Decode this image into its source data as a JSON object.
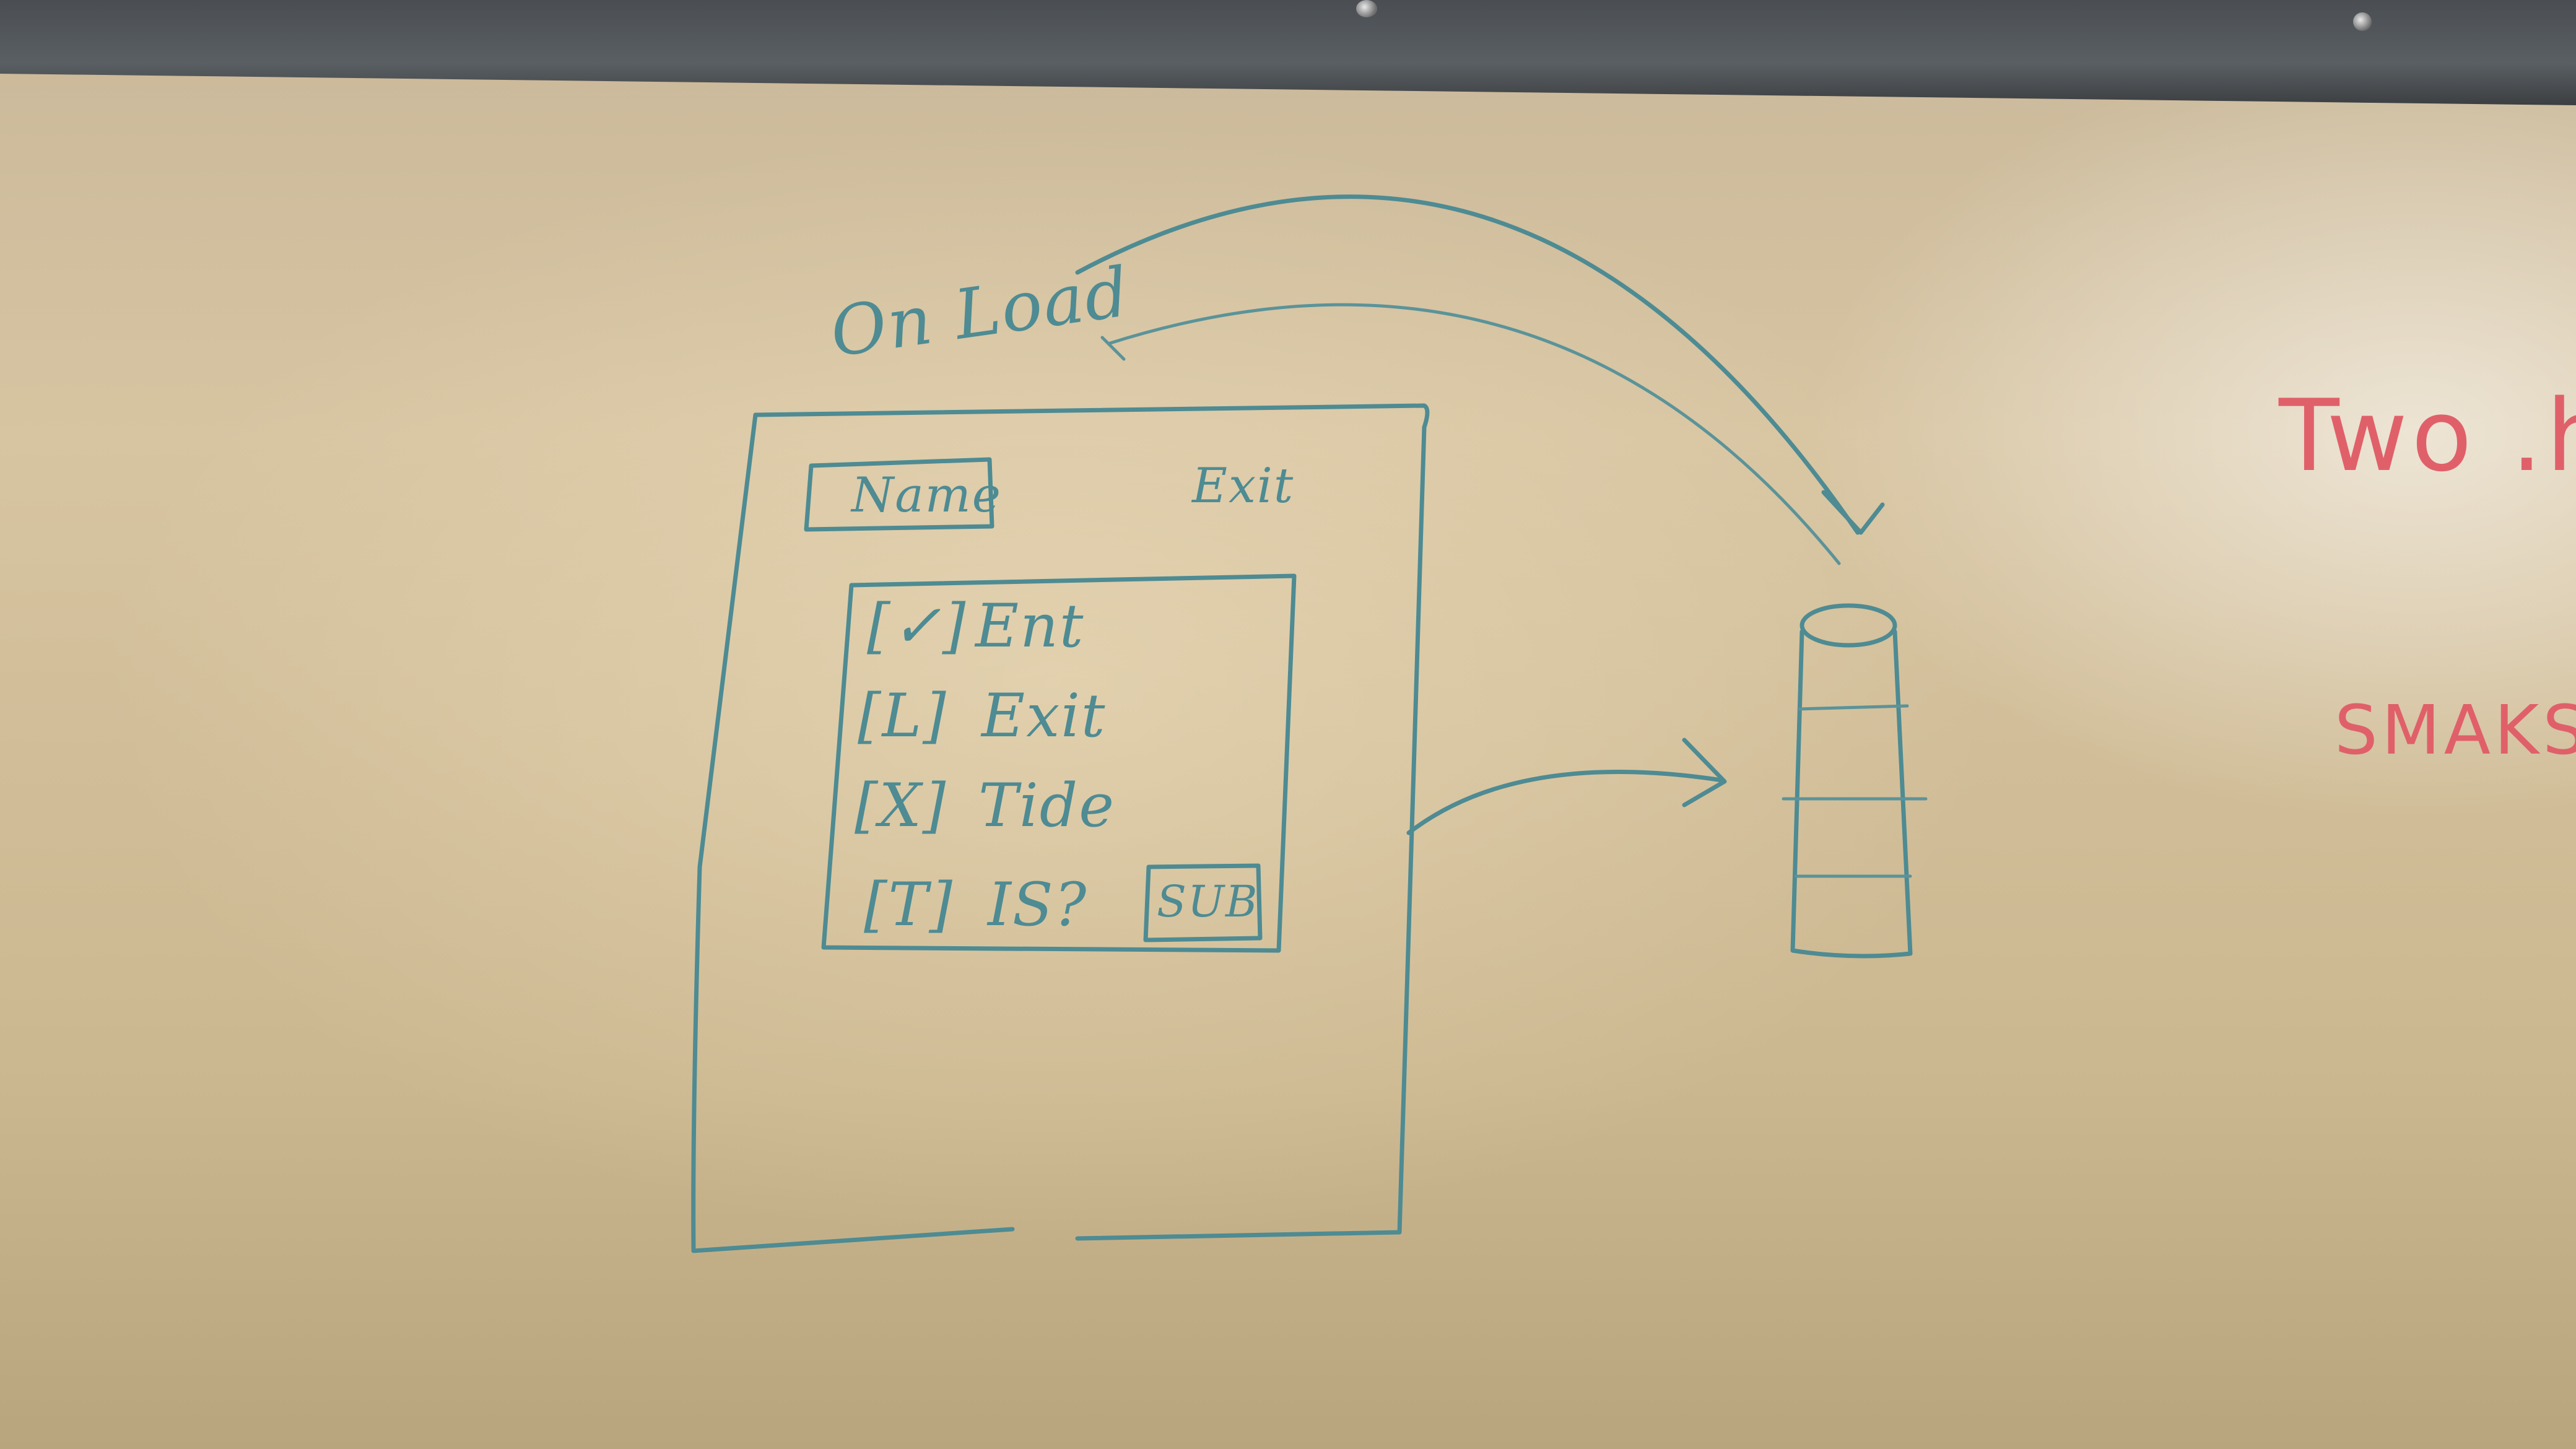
{
  "whiteboard": {
    "on_load_label": "On Load",
    "form": {
      "name_field": "Name",
      "exit_link": "Exit",
      "list_items": [
        {
          "box": "[✓]",
          "label": "Ent"
        },
        {
          "box": "[L]",
          "label": "Exit"
        },
        {
          "box": "[X]",
          "label": "Tide"
        },
        {
          "box": "[T]",
          "label": "IS?"
        }
      ],
      "submit_button": "SUB"
    },
    "red_notes": {
      "top": "Two .h",
      "bottom": "SMAKS"
    }
  },
  "colors": {
    "marker_teal": "#4e8b93",
    "marker_red": "#e0606a",
    "wall": "#d7c4a1"
  }
}
